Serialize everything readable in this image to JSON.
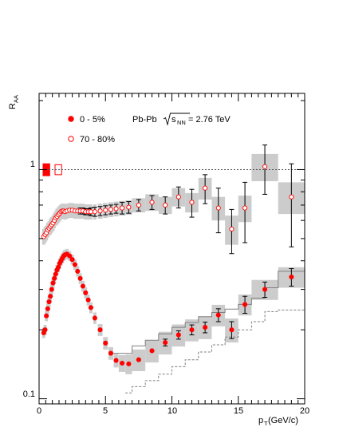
{
  "chart_data": {
    "type": "scatter",
    "y_axis": {
      "label_main": "R",
      "label_sub": "AA",
      "scale": "log",
      "range": [
        0.095,
        2.15
      ],
      "tick_labels": [
        "0.1",
        "1"
      ]
    },
    "x_axis": {
      "label_main": "p",
      "label_sub": "T",
      "label_rest": " (GeV/c)",
      "range": [
        0,
        20
      ],
      "tick_labels": [
        "0",
        "5",
        "10",
        "15",
        "20"
      ]
    },
    "annotation": {
      "text_before": "Pb-Pb ",
      "sqrt_text": "s",
      "sqrt_sub": "NN",
      "text_after": " = 2.76 TeV"
    },
    "reference_line": 1.0,
    "normalization_boxes": [
      {
        "series": "0 - 5%",
        "x0": 0.3,
        "x1": 0.8,
        "y_low": 0.94,
        "y_high": 1.06,
        "filled": true,
        "color": "#ff0000"
      },
      {
        "series": "70 - 80%",
        "x0": 1.2,
        "x1": 1.7,
        "y_low": 0.95,
        "y_high": 1.05,
        "filled": false,
        "color": "#ff0000"
      }
    ],
    "series": [
      {
        "name": "0 - 5%",
        "marker": "filled-circle",
        "color": "#ff0000",
        "x": [
          0.35,
          0.45,
          0.55,
          0.65,
          0.75,
          0.85,
          0.95,
          1.05,
          1.15,
          1.25,
          1.35,
          1.45,
          1.55,
          1.65,
          1.75,
          1.85,
          1.95,
          2.1,
          2.3,
          2.5,
          2.7,
          2.9,
          3.1,
          3.3,
          3.5,
          3.7,
          3.9,
          4.2,
          4.6,
          5.0,
          5.4,
          5.8,
          6.25,
          6.75,
          7.5,
          8.5,
          9.5,
          10.5,
          11.5,
          12.5,
          13.5,
          14.5,
          15.5,
          17.0,
          19.0
        ],
        "y": [
          0.194,
          0.2,
          0.23,
          0.247,
          0.265,
          0.28,
          0.3,
          0.32,
          0.335,
          0.35,
          0.365,
          0.375,
          0.39,
          0.4,
          0.41,
          0.42,
          0.425,
          0.428,
          0.42,
          0.405,
          0.385,
          0.36,
          0.335,
          0.31,
          0.29,
          0.27,
          0.25,
          0.225,
          0.2,
          0.175,
          0.158,
          0.147,
          0.143,
          0.142,
          0.148,
          0.162,
          0.176,
          0.19,
          0.2,
          0.205,
          0.232,
          0.2,
          0.258,
          0.3,
          0.34
        ],
        "y_err": [
          0,
          0,
          0,
          0,
          0,
          0,
          0,
          0,
          0,
          0,
          0,
          0,
          0,
          0,
          0,
          0,
          0,
          0,
          0,
          0,
          0,
          0,
          0,
          0,
          0,
          0,
          0,
          0,
          0,
          0,
          0,
          0,
          0,
          0,
          0,
          0,
          0.006,
          0.008,
          0.01,
          0.011,
          0.015,
          0.017,
          0.022,
          0.023,
          0.03
        ],
        "sys_err": [
          0.01,
          0.01,
          0.012,
          0.013,
          0.014,
          0.015,
          0.015,
          0.016,
          0.017,
          0.018,
          0.018,
          0.019,
          0.02,
          0.02,
          0.021,
          0.021,
          0.022,
          0.022,
          0.021,
          0.02,
          0.02,
          0.019,
          0.018,
          0.017,
          0.016,
          0.015,
          0.014,
          0.013,
          0.012,
          0.011,
          0.01,
          0.01,
          0.012,
          0.014,
          0.016,
          0.018,
          0.02,
          0.021,
          0.022,
          0.023,
          0.025,
          0.024,
          0.027,
          0.03,
          0.035
        ]
      },
      {
        "name": "70 - 80%",
        "marker": "open-circle",
        "color": "#ff0000",
        "x": [
          0.35,
          0.45,
          0.55,
          0.65,
          0.75,
          0.85,
          0.95,
          1.05,
          1.15,
          1.25,
          1.35,
          1.45,
          1.55,
          1.65,
          1.75,
          1.85,
          1.95,
          2.1,
          2.3,
          2.5,
          2.7,
          2.9,
          3.1,
          3.3,
          3.5,
          3.7,
          3.9,
          4.2,
          4.6,
          5.0,
          5.4,
          5.8,
          6.25,
          6.75,
          7.5,
          8.5,
          9.5,
          10.5,
          11.5,
          12.5,
          13.5,
          14.5,
          15.5,
          17.0,
          19.0
        ],
        "y": [
          0.51,
          0.52,
          0.53,
          0.545,
          0.555,
          0.565,
          0.575,
          0.585,
          0.6,
          0.615,
          0.625,
          0.635,
          0.645,
          0.655,
          0.66,
          0.66,
          0.655,
          0.66,
          0.665,
          0.665,
          0.66,
          0.66,
          0.66,
          0.66,
          0.655,
          0.655,
          0.655,
          0.655,
          0.66,
          0.665,
          0.67,
          0.675,
          0.68,
          0.685,
          0.7,
          0.72,
          0.7,
          0.76,
          0.72,
          0.83,
          0.68,
          0.55,
          0.68,
          1.03,
          0.76
        ],
        "y_err": [
          0,
          0,
          0,
          0,
          0,
          0,
          0,
          0,
          0,
          0,
          0,
          0,
          0,
          0,
          0,
          0,
          0,
          0,
          0,
          0,
          0,
          0,
          0.02,
          0.02,
          0.02,
          0.02,
          0.025,
          0.03,
          0.03,
          0.03,
          0.03,
          0.03,
          0.04,
          0.04,
          0.04,
          0.05,
          0.06,
          0.08,
          0.1,
          0.12,
          0.15,
          0.12,
          0.2,
          0.25,
          0.3
        ],
        "sys_err": [
          0.04,
          0.04,
          0.04,
          0.04,
          0.04,
          0.045,
          0.045,
          0.045,
          0.045,
          0.045,
          0.05,
          0.05,
          0.05,
          0.05,
          0.05,
          0.05,
          0.05,
          0.05,
          0.05,
          0.05,
          0.05,
          0.05,
          0.05,
          0.05,
          0.05,
          0.05,
          0.05,
          0.05,
          0.05,
          0.05,
          0.05,
          0.05,
          0.05,
          0.05,
          0.05,
          0.06,
          0.06,
          0.07,
          0.07,
          0.09,
          0.08,
          0.08,
          0.09,
          0.14,
          0.12
        ]
      }
    ],
    "model_curves": [
      {
        "style": "solid",
        "color": "#808080",
        "x": [
          5.5,
          7.0,
          7.0,
          8.0,
          8.0,
          9.0,
          9.0,
          10.0,
          10.0,
          11.0,
          11.0,
          12.0,
          12.0,
          13.0,
          13.0,
          14.0,
          14.0,
          15.0,
          15.0,
          16.0,
          16.0,
          17.0,
          17.0,
          18.0,
          18.0,
          20.0
        ],
        "y": [
          0.158,
          0.158,
          0.17,
          0.17,
          0.18,
          0.18,
          0.192,
          0.192,
          0.205,
          0.205,
          0.215,
          0.215,
          0.228,
          0.228,
          0.238,
          0.238,
          0.246,
          0.246,
          0.258,
          0.258,
          0.275,
          0.275,
          0.305,
          0.305,
          0.36,
          0.36
        ]
      },
      {
        "style": "dashed",
        "color": "#808080",
        "x": [
          6.5,
          7.0,
          7.0,
          8.0,
          8.0,
          9.0,
          9.0,
          10.0,
          10.0,
          11.0,
          11.0,
          12.0,
          12.0,
          13.0,
          13.0,
          14.0,
          14.0,
          15.0,
          15.0,
          16.0,
          16.0,
          17.0,
          17.0,
          18.0,
          18.0,
          20.0
        ],
        "y": [
          0.106,
          0.106,
          0.113,
          0.113,
          0.12,
          0.12,
          0.128,
          0.128,
          0.138,
          0.138,
          0.148,
          0.148,
          0.16,
          0.16,
          0.172,
          0.172,
          0.186,
          0.186,
          0.2,
          0.2,
          0.217,
          0.217,
          0.24,
          0.24,
          0.244,
          0.244
        ]
      }
    ]
  },
  "legend": {
    "items": [
      {
        "label": "0 - 5%",
        "marker": "filled"
      },
      {
        "label": "70 - 80%",
        "marker": "open"
      }
    ]
  }
}
